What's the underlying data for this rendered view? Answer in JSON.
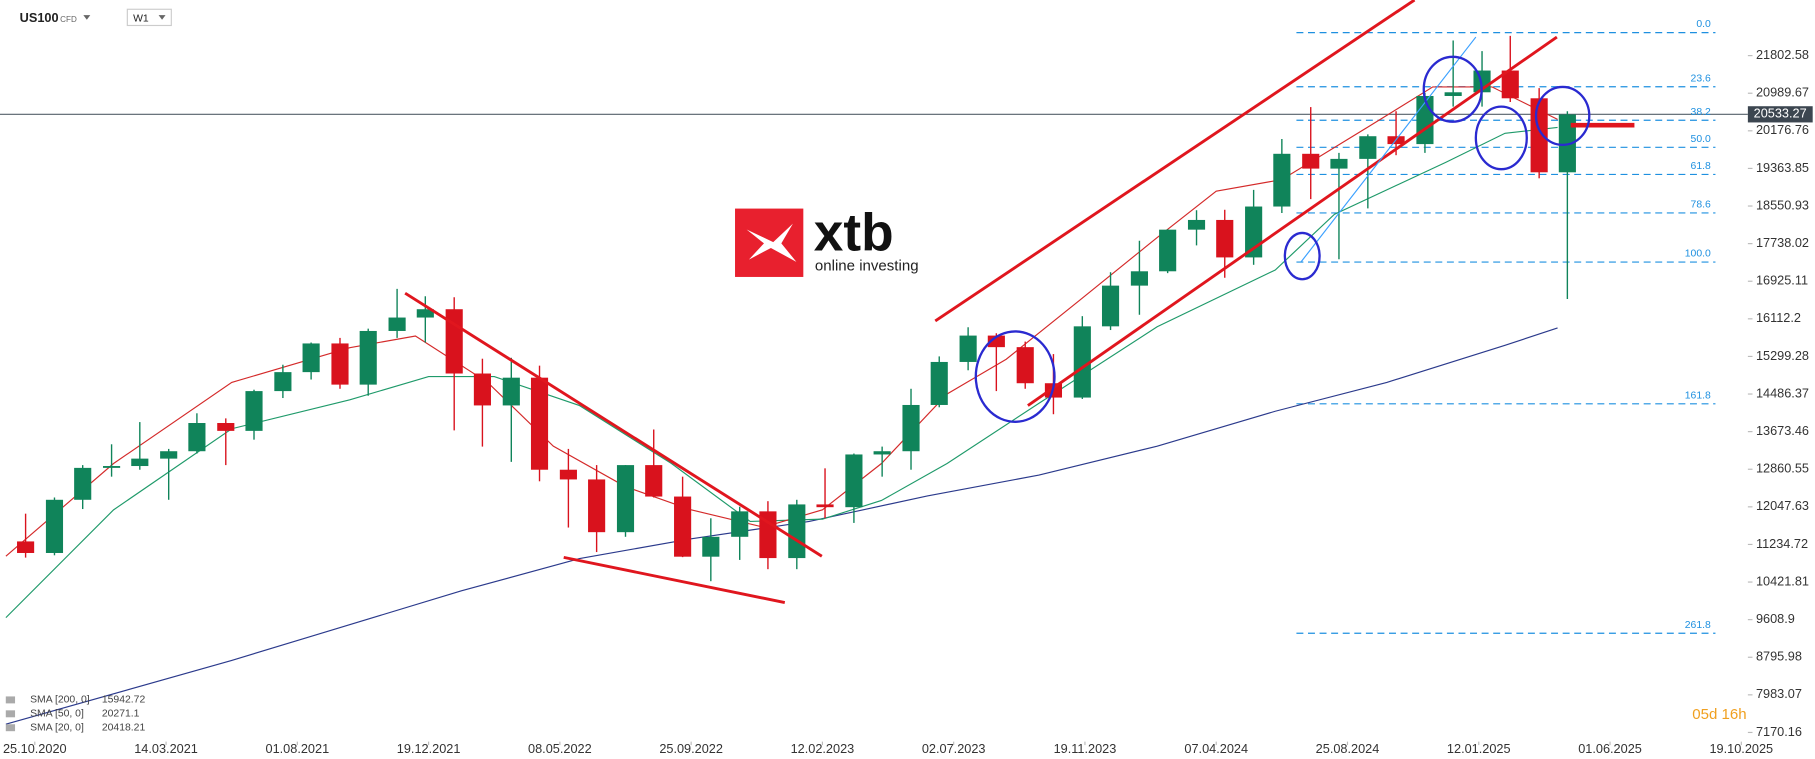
{
  "header": {
    "symbol": "US100",
    "instrument_type": "CFD",
    "interval": "W1"
  },
  "logo": {
    "brand": "xtb",
    "tagline": "online investing"
  },
  "countdown": "05d 16h",
  "chart_data": {
    "type": "candlestick",
    "up_color": "#10845a",
    "down_color": "#d9121d",
    "x": [
      -1.4,
      3.0,
      7.3,
      11.7,
      16.0,
      20.4,
      24.7,
      29.1,
      33.4,
      37.8,
      42.1,
      46.5,
      50.8,
      55.2,
      59.5,
      63.9,
      68.2,
      72.6,
      76.9,
      81.3,
      85.6,
      90.0,
      94.3,
      98.7,
      103.0,
      107.4,
      111.7,
      116.1,
      120.4,
      124.8,
      129.1,
      133.5,
      137.8,
      142.2,
      146.5,
      150.9,
      155.2,
      159.6,
      163.9,
      168.3,
      172.6,
      177.0,
      181.3,
      185.7,
      190.0,
      194.4,
      198.7,
      203.1,
      207.4,
      211.8,
      216.1,
      220.5,
      224.8,
      229.2,
      233.5
    ],
    "open": [
      11300,
      11050,
      12200,
      12890,
      12930,
      13090,
      13250,
      13860,
      13690,
      14550,
      14960,
      15580,
      14690,
      15850,
      16140,
      16320,
      14930,
      14240,
      14840,
      12850,
      12640,
      11500,
      12950,
      12270,
      10970,
      11400,
      11950,
      10940,
      12100,
      12040,
      13180,
      13250,
      14250,
      15180,
      15750,
      15500,
      14720,
      14410,
      15950,
      16830,
      17140,
      18040,
      18250,
      17440,
      18540,
      19680,
      19360,
      19570,
      20060,
      19890,
      20930,
      21010,
      21480,
      20880,
      19280
    ],
    "high": [
      11900,
      12250,
      12950,
      13400,
      13880,
      13300,
      14070,
      13960,
      14580,
      15120,
      15600,
      15700,
      15900,
      16760,
      16600,
      16580,
      15250,
      15270,
      15100,
      13300,
      12950,
      12950,
      13720,
      12700,
      11800,
      12050,
      12170,
      12200,
      12880,
      13200,
      13350,
      14600,
      15300,
      15930,
      15800,
      15620,
      15350,
      16170,
      17120,
      17800,
      18050,
      18460,
      18470,
      18900,
      20000,
      20690,
      19700,
      20100,
      20600,
      21000,
      22130,
      21900,
      22230,
      21100,
      20600
    ],
    "low": [
      10950,
      11000,
      12000,
      12700,
      12850,
      12200,
      13200,
      12950,
      13500,
      14400,
      14800,
      14600,
      14450,
      15700,
      15600,
      13700,
      13350,
      13020,
      12600,
      11600,
      11070,
      11400,
      12250,
      10960,
      10440,
      10900,
      10700,
      10700,
      11800,
      11700,
      12700,
      12850,
      14200,
      15000,
      14550,
      14600,
      14050,
      14380,
      15870,
      16200,
      17100,
      17700,
      17000,
      17280,
      18400,
      18700,
      17400,
      18500,
      19650,
      19700,
      20700,
      20700,
      20800,
      19150,
      16540
    ],
    "close": [
      11050,
      12200,
      12890,
      12930,
      13090,
      13250,
      13860,
      13690,
      14550,
      14960,
      15580,
      14690,
      15850,
      16140,
      16320,
      14930,
      14240,
      14840,
      12850,
      12640,
      11500,
      12950,
      12270,
      10970,
      11400,
      11950,
      10940,
      12100,
      12040,
      13180,
      13250,
      14250,
      15180,
      15750,
      15500,
      14720,
      14410,
      15950,
      16830,
      17140,
      18040,
      18250,
      17440,
      18540,
      19680,
      19360,
      19570,
      20060,
      19890,
      20930,
      21010,
      21480,
      20880,
      19280,
      20530
    ],
    "overlays": [
      {
        "name": "SMA [200, 0]",
        "color": "#2b3a8c",
        "last_value": 15942.72,
        "x": [
          -4.4,
          30,
          65,
          83,
          100,
          118,
          136,
          153,
          171,
          189,
          206,
          224,
          232
        ],
        "values": [
          7349,
          8727,
          10230,
          10931,
          11357,
          11733,
          12284,
          12735,
          13361,
          14113,
          14739,
          15540,
          15916
        ]
      },
      {
        "name": "SMA [50, 0]",
        "color": "#1f9a6a",
        "last_value": 20271.1,
        "x": [
          -4.4,
          12,
          30,
          48,
          60,
          70,
          83,
          97,
          109,
          120,
          129,
          139,
          153,
          171,
          189,
          198,
          215,
          224,
          232
        ],
        "values": [
          9653,
          11983,
          13737,
          14363,
          14864,
          14864,
          14238,
          12985,
          11733,
          11783,
          12184,
          12985,
          14288,
          15941,
          17168,
          18371,
          19498,
          20124,
          20250
        ]
      },
      {
        "name": "SMA [20, 0]",
        "color": "#d42a2a",
        "last_value": 20418.21,
        "x": [
          -4.4,
          12,
          30,
          48,
          58,
          69,
          79,
          90,
          100,
          111,
          120,
          129,
          139,
          148,
          159,
          171,
          180,
          190,
          203,
          213,
          222,
          232
        ],
        "values": [
          10981,
          12985,
          14739,
          15490,
          15741,
          14739,
          13361,
          12484,
          11983,
          11608,
          11983,
          12985,
          14488,
          15240,
          16492,
          17870,
          18872,
          19123,
          20250,
          21127,
          21127,
          20425
        ]
      }
    ],
    "fib": {
      "high": 22300,
      "low": 17340,
      "color": "#1e90e0",
      "levels": [
        {
          "value": 0,
          "label": "0.0"
        },
        23.6,
        38.2,
        {
          "value": 50,
          "label": "50.0"
        },
        61.8,
        78.6,
        {
          "value": 100,
          "label": "100.0"
        },
        161.8,
        261.8
      ]
    },
    "current_price": 20533.27,
    "xlim": [
      -5.3,
      261
    ],
    "ylim": [
      6972,
      23005
    ],
    "yticks": [
      21802.58,
      20989.67,
      20176.76,
      19363.85,
      18550.93,
      17738.02,
      16925.11,
      16112.2,
      15299.28,
      14486.37,
      13673.46,
      12860.55,
      12047.63,
      11234.72,
      10421.81,
      9608.9,
      8795.98,
      7983.07,
      7170.16
    ],
    "xticks": [
      {
        "value": 0,
        "label": "25.10.2020"
      },
      {
        "value": 20,
        "label": "14.03.2021"
      },
      {
        "value": 40,
        "label": "01.08.2021"
      },
      {
        "value": 60,
        "label": "19.12.2021"
      },
      {
        "value": 80,
        "label": "08.05.2022"
      },
      {
        "value": 100,
        "label": "25.09.2022"
      },
      {
        "value": 120,
        "label": "12.02.2023"
      },
      {
        "value": 140,
        "label": "02.07.2023"
      },
      {
        "value": 160,
        "label": "19.11.2023"
      },
      {
        "value": 180,
        "label": "07.04.2024"
      },
      {
        "value": 200,
        "label": "25.08.2024"
      },
      {
        "value": 220,
        "label": "12.01.2025"
      },
      {
        "value": 240,
        "label": "01.06.2025"
      },
      {
        "value": 260,
        "label": "19.10.2025"
      }
    ]
  }
}
